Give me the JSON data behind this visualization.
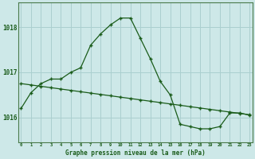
{
  "line1_x": [
    0,
    1,
    2,
    3,
    4,
    5,
    6,
    7,
    8,
    9,
    10,
    11,
    12,
    13,
    14,
    15,
    16,
    17,
    18,
    19,
    20,
    21,
    22,
    23
  ],
  "line1_y": [
    1016.75,
    1016.72,
    1016.69,
    1016.66,
    1016.63,
    1016.6,
    1016.57,
    1016.54,
    1016.51,
    1016.48,
    1016.45,
    1016.42,
    1016.39,
    1016.36,
    1016.33,
    1016.3,
    1016.27,
    1016.24,
    1016.21,
    1016.18,
    1016.15,
    1016.12,
    1016.09,
    1016.06
  ],
  "line2_x": [
    0,
    1,
    2,
    3,
    4,
    5,
    6,
    7,
    8,
    9,
    10,
    11,
    12,
    13,
    14,
    15,
    16,
    17,
    18,
    19,
    20,
    21,
    22,
    23
  ],
  "line2_y": [
    1016.2,
    1016.55,
    1016.75,
    1016.85,
    1016.85,
    1017.0,
    1017.1,
    1017.6,
    1017.85,
    1018.05,
    1018.2,
    1018.2,
    1017.75,
    1017.3,
    1016.8,
    1016.5,
    1015.85,
    1015.8,
    1015.75,
    1015.75,
    1015.8,
    1016.1,
    1016.1,
    1016.05
  ],
  "bg_color": "#cde8e8",
  "grid_color": "#aacfcf",
  "line_color": "#1a5c1a",
  "yticks": [
    1016,
    1017,
    1018
  ],
  "xticks": [
    0,
    1,
    2,
    3,
    4,
    5,
    6,
    7,
    8,
    9,
    10,
    11,
    12,
    13,
    14,
    15,
    16,
    17,
    18,
    19,
    20,
    21,
    22,
    23
  ],
  "xlim": [
    -0.3,
    23.3
  ],
  "ylim": [
    1015.45,
    1018.55
  ],
  "xlabel": "Graphe pression niveau de la mer (hPa)",
  "marker": "+"
}
